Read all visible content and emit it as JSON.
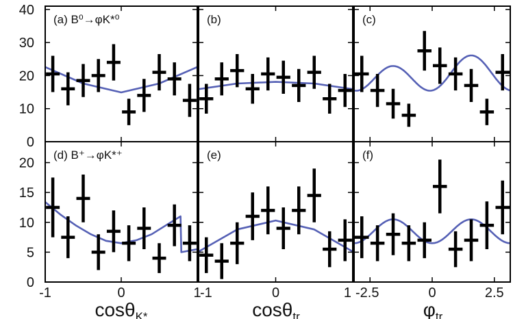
{
  "chart_data": {
    "type": "scatter",
    "rows": [
      {
        "ylim": [
          0,
          41
        ],
        "yticks": [
          "0",
          "10",
          "20",
          "30",
          "40"
        ],
        "ytick_values": [
          0,
          10,
          20,
          30,
          40
        ],
        "panels": [
          {
            "label": "(a) B⁰→φK*⁰",
            "xlim": [
              -1,
              1
            ],
            "points": [
              {
                "x": -0.9,
                "y": 20.5,
                "yerr": 5.5
              },
              {
                "x": -0.7,
                "y": 16,
                "yerr": 5
              },
              {
                "x": -0.5,
                "y": 18.5,
                "yerr": 5
              },
              {
                "x": -0.3,
                "y": 20,
                "yerr": 5
              },
              {
                "x": -0.1,
                "y": 24,
                "yerr": 5.5
              },
              {
                "x": 0.1,
                "y": 9,
                "yerr": 4
              },
              {
                "x": 0.3,
                "y": 14,
                "yerr": 5
              },
              {
                "x": 0.5,
                "y": 21,
                "yerr": 5.5
              },
              {
                "x": 0.7,
                "y": 19,
                "yerr": 5
              },
              {
                "x": 0.9,
                "y": 12.5,
                "yerr": 5
              }
            ],
            "curve": [
              [
                -1,
                22.6
              ],
              [
                -0.5,
                17.6
              ],
              [
                0,
                14.9
              ],
              [
                0.5,
                17.6
              ],
              [
                1,
                22.6
              ]
            ]
          },
          {
            "label": "(b)",
            "xlim": [
              -1,
              1
            ],
            "points": [
              {
                "x": -0.9,
                "y": 13,
                "yerr": 4.5
              },
              {
                "x": -0.7,
                "y": 19,
                "yerr": 5
              },
              {
                "x": -0.5,
                "y": 21.5,
                "yerr": 5
              },
              {
                "x": -0.3,
                "y": 16,
                "yerr": 4.5
              },
              {
                "x": -0.1,
                "y": 20.5,
                "yerr": 5
              },
              {
                "x": 0.1,
                "y": 19.5,
                "yerr": 5
              },
              {
                "x": 0.3,
                "y": 17,
                "yerr": 5
              },
              {
                "x": 0.5,
                "y": 21,
                "yerr": 5
              },
              {
                "x": 0.7,
                "y": 13,
                "yerr": 4.5
              },
              {
                "x": 0.9,
                "y": 15.5,
                "yerr": 5
              }
            ],
            "curve": [
              [
                -1,
                15.9
              ],
              [
                -0.5,
                17.6
              ],
              [
                0,
                18.1
              ],
              [
                0.5,
                17.6
              ],
              [
                1,
                15.9
              ]
            ]
          },
          {
            "label": "(c)",
            "xlim": [
              -3.14,
              3.14
            ],
            "points": [
              {
                "x": -2.83,
                "y": 20.5,
                "yerr": 5.5
              },
              {
                "x": -2.2,
                "y": 15.5,
                "yerr": 5
              },
              {
                "x": -1.57,
                "y": 11.5,
                "yerr": 4.5
              },
              {
                "x": -0.94,
                "y": 8,
                "yerr": 3.5
              },
              {
                "x": -0.31,
                "y": 27.5,
                "yerr": 6
              },
              {
                "x": 0.31,
                "y": 23,
                "yerr": 5.5
              },
              {
                "x": 0.94,
                "y": 20.5,
                "yerr": 5
              },
              {
                "x": 1.57,
                "y": 17,
                "yerr": 5
              },
              {
                "x": 2.2,
                "y": 9,
                "yerr": 4
              },
              {
                "x": 2.83,
                "y": 21,
                "yerr": 5.5
              }
            ],
            "curve": "20 - 4.5*cos(2*phi) + 1.6*sin(phi)"
          }
        ]
      },
      {
        "ylim": [
          0,
          23.5
        ],
        "yticks": [
          "0",
          "5",
          "10",
          "15",
          "20"
        ],
        "ytick_values": [
          0,
          5,
          10,
          15,
          20
        ],
        "panels": [
          {
            "label": "(d) B⁺→φK*⁺",
            "xlim": [
              -1,
              1
            ],
            "points": [
              {
                "x": -0.9,
                "y": 12.5,
                "yerr": 5
              },
              {
                "x": -0.7,
                "y": 7.5,
                "yerr": 3.5
              },
              {
                "x": -0.5,
                "y": 14,
                "yerr": 4
              },
              {
                "x": -0.3,
                "y": 5,
                "yerr": 3
              },
              {
                "x": -0.1,
                "y": 8.5,
                "yerr": 3.5
              },
              {
                "x": 0.1,
                "y": 6.5,
                "yerr": 3
              },
              {
                "x": 0.3,
                "y": 9,
                "yerr": 3.5
              },
              {
                "x": 0.5,
                "y": 4,
                "yerr": 2.5
              },
              {
                "x": 0.7,
                "y": 9.5,
                "yerr": 3.5
              },
              {
                "x": 0.9,
                "y": 6.5,
                "yerr": 3
              }
            ],
            "curve": [
              [
                -1,
                13.4
              ],
              [
                -0.8,
                11.3
              ],
              [
                -0.6,
                9.5
              ],
              [
                -0.4,
                8.0
              ],
              [
                -0.2,
                6.9
              ],
              [
                0,
                6.5
              ],
              [
                0.2,
                7.0
              ],
              [
                0.4,
                8.0
              ],
              [
                0.6,
                9.6
              ],
              [
                0.78,
                11.0
              ],
              [
                0.79,
                5.0
              ],
              [
                1,
                5.5
              ]
            ]
          },
          {
            "label": "(e)",
            "xlim": [
              -1,
              1
            ],
            "points": [
              {
                "x": -0.9,
                "y": 4.5,
                "yerr": 3
              },
              {
                "x": -0.7,
                "y": 3.5,
                "yerr": 3
              },
              {
                "x": -0.5,
                "y": 6.5,
                "yerr": 3.5
              },
              {
                "x": -0.3,
                "y": 11,
                "yerr": 4
              },
              {
                "x": -0.1,
                "y": 12,
                "yerr": 4
              },
              {
                "x": 0.1,
                "y": 9,
                "yerr": 3.5
              },
              {
                "x": 0.3,
                "y": 12,
                "yerr": 4
              },
              {
                "x": 0.5,
                "y": 14.5,
                "yerr": 4.5
              },
              {
                "x": 0.7,
                "y": 5.5,
                "yerr": 3
              },
              {
                "x": 0.9,
                "y": 7,
                "yerr": 3.5
              }
            ],
            "curve": [
              [
                -1,
                5.1
              ],
              [
                -0.5,
                8.8
              ],
              [
                0,
                10.3
              ],
              [
                0.5,
                8.8
              ],
              [
                1,
                5.1
              ]
            ]
          },
          {
            "label": "(f)",
            "xlim": [
              -3.14,
              3.14
            ],
            "points": [
              {
                "x": -2.83,
                "y": 7.5,
                "yerr": 3.5
              },
              {
                "x": -2.2,
                "y": 6.5,
                "yerr": 3
              },
              {
                "x": -1.57,
                "y": 8,
                "yerr": 3.5
              },
              {
                "x": -0.94,
                "y": 6.5,
                "yerr": 3
              },
              {
                "x": -0.31,
                "y": 7,
                "yerr": 3
              },
              {
                "x": 0.31,
                "y": 16,
                "yerr": 4.5
              },
              {
                "x": 0.94,
                "y": 5.5,
                "yerr": 3
              },
              {
                "x": 1.57,
                "y": 7,
                "yerr": 3.5
              },
              {
                "x": 2.2,
                "y": 9.5,
                "yerr": 4
              },
              {
                "x": 2.83,
                "y": 12.5,
                "yerr": 4.5
              }
            ],
            "curve": "8.5 - 2*cos(2*phi)"
          }
        ]
      }
    ],
    "xticks": [
      [
        {
          "v": -1,
          "t": "-1"
        },
        {
          "v": 0,
          "t": "0"
        },
        {
          "v": 1,
          "t": "1"
        }
      ],
      [
        {
          "v": -1,
          "t": "-1"
        },
        {
          "v": 0,
          "t": "0"
        },
        {
          "v": 1,
          "t": "1"
        }
      ],
      [
        {
          "v": -2.5,
          "t": "-2.5"
        },
        {
          "v": 0,
          "t": "0"
        },
        {
          "v": 2.5,
          "t": "2.5"
        }
      ]
    ],
    "xlabels": [
      {
        "main": "cosθ",
        "sub": "K*"
      },
      {
        "main": "cosθ",
        "sub": "tr"
      },
      {
        "main": "φ",
        "sub": "tr"
      }
    ],
    "colors": {
      "curve": "#5560b5",
      "points": "#000000",
      "frame": "#000000"
    }
  }
}
